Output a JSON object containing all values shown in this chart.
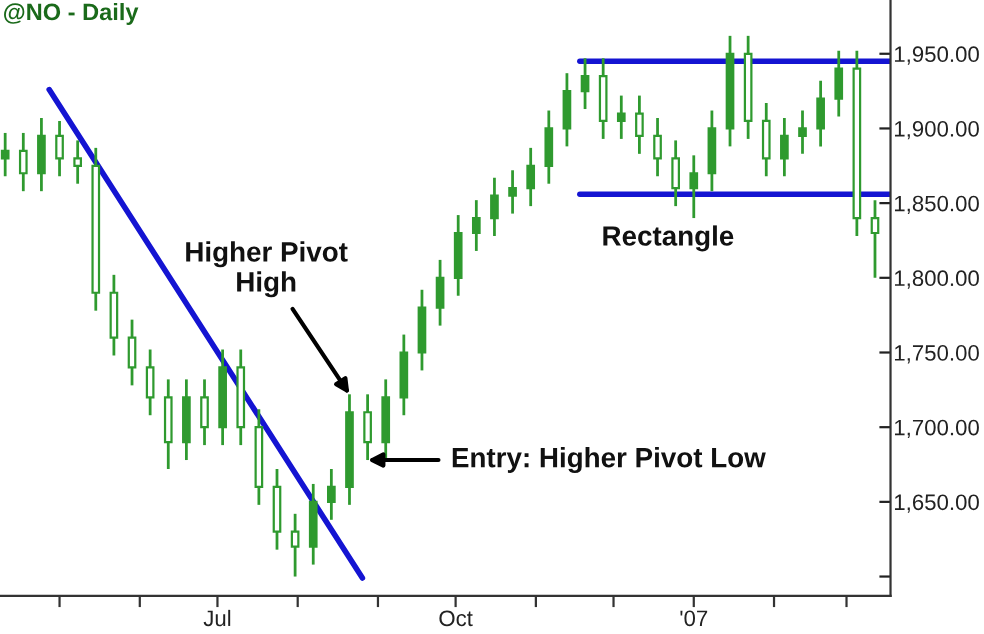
{
  "chart_data": {
    "type": "candlestick",
    "title": "@NO - Daily",
    "color": "#2f9a2f",
    "x": [
      "2006-04-10",
      "2006-04-17",
      "2006-04-24",
      "2006-05-01",
      "2006-05-08",
      "2006-05-15",
      "2006-05-22",
      "2006-05-29",
      "2006-06-05",
      "2006-06-12",
      "2006-06-19",
      "2006-06-26",
      "2006-07-03",
      "2006-07-10",
      "2006-07-17",
      "2006-07-24",
      "2006-07-31",
      "2006-08-07",
      "2006-08-14",
      "2006-08-21",
      "2006-08-28",
      "2006-09-04",
      "2006-09-11",
      "2006-09-18",
      "2006-09-25",
      "2006-10-02",
      "2006-10-09",
      "2006-10-16",
      "2006-10-23",
      "2006-10-30",
      "2006-11-06",
      "2006-11-13",
      "2006-11-20",
      "2006-11-27",
      "2006-12-04",
      "2006-12-11",
      "2006-12-18",
      "2006-12-25",
      "2007-01-01",
      "2007-01-08",
      "2007-01-15",
      "2007-01-22",
      "2007-01-29",
      "2007-02-05",
      "2007-02-12",
      "2007-02-19",
      "2007-02-26",
      "2007-03-05",
      "2007-03-12"
    ],
    "ohlc": [
      [
        1880,
        1897,
        1868,
        1885
      ],
      [
        1885,
        1897,
        1858,
        1870
      ],
      [
        1870,
        1907,
        1858,
        1895
      ],
      [
        1895,
        1905,
        1868,
        1880
      ],
      [
        1880,
        1892,
        1863,
        1875
      ],
      [
        1875,
        1887,
        1778,
        1790
      ],
      [
        1790,
        1802,
        1748,
        1760
      ],
      [
        1760,
        1772,
        1728,
        1740
      ],
      [
        1740,
        1752,
        1708,
        1720
      ],
      [
        1720,
        1732,
        1672,
        1690
      ],
      [
        1690,
        1732,
        1678,
        1720
      ],
      [
        1720,
        1732,
        1688,
        1700
      ],
      [
        1700,
        1752,
        1688,
        1740
      ],
      [
        1740,
        1752,
        1688,
        1700
      ],
      [
        1700,
        1712,
        1648,
        1660
      ],
      [
        1660,
        1672,
        1618,
        1630
      ],
      [
        1630,
        1642,
        1600,
        1620
      ],
      [
        1620,
        1662,
        1608,
        1650
      ],
      [
        1650,
        1672,
        1638,
        1660
      ],
      [
        1660,
        1722,
        1648,
        1710
      ],
      [
        1710,
        1722,
        1678,
        1690
      ],
      [
        1690,
        1732,
        1678,
        1720
      ],
      [
        1720,
        1762,
        1708,
        1750
      ],
      [
        1750,
        1792,
        1738,
        1780
      ],
      [
        1780,
        1812,
        1768,
        1800
      ],
      [
        1800,
        1842,
        1788,
        1830
      ],
      [
        1830,
        1852,
        1818,
        1840
      ],
      [
        1840,
        1867,
        1828,
        1855
      ],
      [
        1855,
        1872,
        1843,
        1860
      ],
      [
        1860,
        1887,
        1848,
        1875
      ],
      [
        1875,
        1912,
        1863,
        1900
      ],
      [
        1900,
        1937,
        1888,
        1925
      ],
      [
        1925,
        1947,
        1913,
        1935
      ],
      [
        1935,
        1947,
        1893,
        1905
      ],
      [
        1905,
        1922,
        1893,
        1910
      ],
      [
        1910,
        1922,
        1883,
        1895
      ],
      [
        1895,
        1907,
        1868,
        1880
      ],
      [
        1880,
        1892,
        1848,
        1860
      ],
      [
        1860,
        1882,
        1840,
        1870
      ],
      [
        1870,
        1912,
        1858,
        1900
      ],
      [
        1900,
        1962,
        1888,
        1950
      ],
      [
        1950,
        1962,
        1893,
        1905
      ],
      [
        1905,
        1917,
        1868,
        1880
      ],
      [
        1880,
        1907,
        1868,
        1895
      ],
      [
        1895,
        1912,
        1883,
        1900
      ],
      [
        1900,
        1932,
        1888,
        1920
      ],
      [
        1920,
        1952,
        1908,
        1940
      ],
      [
        1940,
        1952,
        1828,
        1840
      ],
      [
        1840,
        1852,
        1800,
        1830
      ]
    ],
    "series": [
      {
        "type": "line",
        "color": "#1414d2",
        "x": [
          "2006-04-27",
          "2006-08-26"
        ],
        "values": [
          1926,
          1599
        ]
      },
      {
        "type": "line",
        "color": "#1414d2",
        "x": [
          "2006-11-18",
          "2007-03-18"
        ],
        "values": [
          1945,
          1945
        ]
      },
      {
        "type": "line",
        "color": "#1414d2",
        "x": [
          "2006-11-18",
          "2007-03-18"
        ],
        "values": [
          1856,
          1856
        ]
      }
    ],
    "xlim": [
      "2006-04-08",
      "2007-03-18"
    ],
    "xticks": [
      {
        "value": "2006-05-01",
        "label": null
      },
      {
        "value": "2006-06-01",
        "label": null
      },
      {
        "value": "2006-07-01",
        "label": "Jul"
      },
      {
        "value": "2006-08-01",
        "label": null
      },
      {
        "value": "2006-09-01",
        "label": null
      },
      {
        "value": "2006-10-01",
        "label": "Oct"
      },
      {
        "value": "2006-11-01",
        "label": null
      },
      {
        "value": "2006-12-01",
        "label": null
      },
      {
        "value": "2007-01-01",
        "label": "'07"
      },
      {
        "value": "2007-02-01",
        "label": null
      },
      {
        "value": "2007-03-01",
        "label": null
      }
    ],
    "ylim": [
      1587,
      1986
    ],
    "yticks": [
      {
        "value": 1600,
        "label": null
      },
      {
        "value": 1650,
        "label": "1,650.00"
      },
      {
        "value": 1700,
        "label": "1,700.00"
      },
      {
        "value": 1750,
        "label": "1,750.00"
      },
      {
        "value": 1800,
        "label": "1,800.00"
      },
      {
        "value": 1850,
        "label": "1,850.00"
      },
      {
        "value": 1900,
        "label": "1,900.00"
      },
      {
        "value": 1950,
        "label": "1,950.00"
      }
    ],
    "annotations": [
      {
        "text": "Higher Pivot\nHigh",
        "x": "2006-08-21",
        "y": 1722
      },
      {
        "text": "Entry: Higher Pivot Low",
        "x": "2006-08-28",
        "y": 1678
      },
      "Rectangle"
    ],
    "grid": false,
    "legend": false
  }
}
